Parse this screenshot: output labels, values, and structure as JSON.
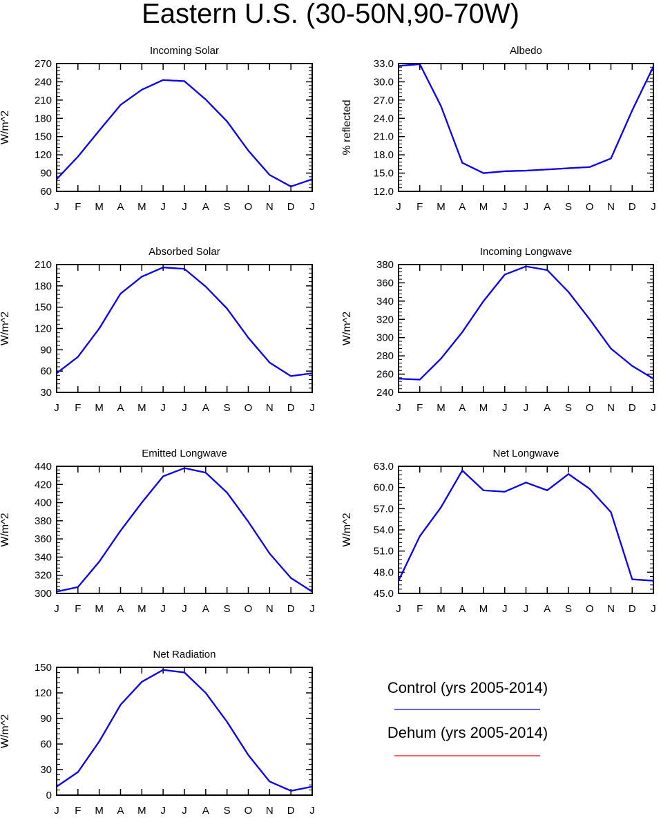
{
  "title": "Eastern U.S. (30-50N,90-70W)",
  "legend": {
    "entries": [
      {
        "label": "Control (yrs 2005-2014)",
        "color": "#0000ff"
      },
      {
        "label": "Dehum (yrs 2005-2014)",
        "color": "#ff0000"
      }
    ]
  },
  "chart_data": [
    {
      "type": "line",
      "title": "Incoming Solar",
      "ylabel": "W/m^2",
      "categories": [
        "J",
        "F",
        "M",
        "A",
        "M",
        "J",
        "J",
        "A",
        "S",
        "O",
        "N",
        "D",
        "J"
      ],
      "ylim": [
        60,
        270
      ],
      "yticks": [
        60,
        90,
        120,
        150,
        180,
        210,
        240,
        270
      ],
      "ytick_labels": [
        "60",
        "90",
        "120",
        "150",
        "180",
        "210",
        "240",
        "270"
      ],
      "series": [
        {
          "name": "Control (yrs 2005-2014)",
          "color": "#0000ff",
          "values": [
            80,
            117,
            160,
            202,
            227,
            243,
            241,
            211,
            175,
            127,
            87,
            68,
            80
          ]
        },
        {
          "name": "Dehum (yrs 2005-2014)",
          "color": "#ff0000",
          "values": [
            80,
            117,
            160,
            202,
            227,
            243,
            241,
            211,
            175,
            127,
            87,
            68,
            80
          ]
        }
      ]
    },
    {
      "type": "line",
      "title": "Albedo",
      "ylabel": "% reflected",
      "categories": [
        "J",
        "F",
        "M",
        "A",
        "M",
        "J",
        "J",
        "A",
        "S",
        "O",
        "N",
        "D",
        "J"
      ],
      "ylim": [
        12.0,
        33.0
      ],
      "yticks": [
        12,
        15,
        18,
        21,
        24,
        27,
        30,
        33
      ],
      "ytick_labels": [
        "12.0",
        "15.0",
        "18.0",
        "21.0",
        "24.0",
        "27.0",
        "30.0",
        "33.0"
      ],
      "series": [
        {
          "name": "Control (yrs 2005-2014)",
          "color": "#0000ff",
          "values": [
            32.6,
            32.9,
            26.0,
            16.7,
            15.0,
            15.3,
            15.4,
            15.6,
            15.8,
            16.0,
            17.4,
            25.3,
            32.5
          ]
        },
        {
          "name": "Dehum (yrs 2005-2014)",
          "color": "#ff0000",
          "values": [
            32.6,
            32.9,
            26.0,
            16.7,
            15.0,
            15.3,
            15.4,
            15.6,
            15.8,
            16.0,
            17.4,
            25.3,
            32.5
          ]
        }
      ]
    },
    {
      "type": "line",
      "title": "Absorbed Solar",
      "ylabel": "W/m^2",
      "categories": [
        "J",
        "F",
        "M",
        "A",
        "M",
        "J",
        "J",
        "A",
        "S",
        "O",
        "N",
        "D",
        "J"
      ],
      "ylim": [
        30,
        210
      ],
      "yticks": [
        30,
        60,
        90,
        120,
        150,
        180,
        210
      ],
      "ytick_labels": [
        "30",
        "60",
        "90",
        "120",
        "150",
        "180",
        "210"
      ],
      "series": [
        {
          "name": "Control (yrs 2005-2014)",
          "color": "#0000ff",
          "values": [
            57,
            80,
            120,
            169,
            193,
            206,
            204,
            179,
            148,
            107,
            72,
            53,
            57
          ]
        },
        {
          "name": "Dehum (yrs 2005-2014)",
          "color": "#ff0000",
          "values": [
            57,
            80,
            120,
            169,
            193,
            206,
            204,
            179,
            148,
            107,
            72,
            53,
            57
          ]
        }
      ]
    },
    {
      "type": "line",
      "title": "Incoming Longwave",
      "ylabel": "W/m^2",
      "categories": [
        "J",
        "F",
        "M",
        "A",
        "M",
        "J",
        "J",
        "A",
        "S",
        "O",
        "N",
        "D",
        "J"
      ],
      "ylim": [
        240,
        380
      ],
      "yticks": [
        240,
        260,
        280,
        300,
        320,
        340,
        360,
        380
      ],
      "ytick_labels": [
        "240",
        "260",
        "280",
        "300",
        "320",
        "340",
        "360",
        "380"
      ],
      "series": [
        {
          "name": "Control (yrs 2005-2014)",
          "color": "#0000ff",
          "values": [
            255,
            254,
            277,
            306,
            340,
            369,
            378,
            374,
            350,
            320,
            288,
            269,
            255
          ]
        },
        {
          "name": "Dehum (yrs 2005-2014)",
          "color": "#ff0000",
          "values": [
            255,
            254,
            277,
            306,
            340,
            369,
            378,
            374,
            350,
            320,
            288,
            269,
            255
          ]
        }
      ]
    },
    {
      "type": "line",
      "title": "Emitted Longwave",
      "ylabel": "W/m^2",
      "categories": [
        "J",
        "F",
        "M",
        "A",
        "M",
        "J",
        "J",
        "A",
        "S",
        "O",
        "N",
        "D",
        "J"
      ],
      "ylim": [
        300,
        440
      ],
      "yticks": [
        300,
        320,
        340,
        360,
        380,
        400,
        420,
        440
      ],
      "ytick_labels": [
        "300",
        "320",
        "340",
        "360",
        "380",
        "400",
        "420",
        "440"
      ],
      "series": [
        {
          "name": "Control (yrs 2005-2014)",
          "color": "#0000ff",
          "values": [
            302,
            307,
            335,
            369,
            400,
            429,
            438,
            433,
            411,
            379,
            344,
            317,
            302
          ]
        },
        {
          "name": "Dehum (yrs 2005-2014)",
          "color": "#ff0000",
          "values": [
            302,
            307,
            335,
            369,
            400,
            429,
            438,
            433,
            411,
            379,
            344,
            317,
            302
          ]
        }
      ]
    },
    {
      "type": "line",
      "title": "Net Longwave",
      "ylabel": "W/m^2",
      "categories": [
        "J",
        "F",
        "M",
        "A",
        "M",
        "J",
        "J",
        "A",
        "S",
        "O",
        "N",
        "D",
        "J"
      ],
      "ylim": [
        45.0,
        63.0
      ],
      "yticks": [
        45,
        48,
        51,
        54,
        57,
        60,
        63
      ],
      "ytick_labels": [
        "45.0",
        "48.0",
        "51.0",
        "54.0",
        "57.0",
        "60.0",
        "63.0"
      ],
      "series": [
        {
          "name": "Control (yrs 2005-2014)",
          "color": "#0000ff",
          "values": [
            46.8,
            53.1,
            57.2,
            62.4,
            59.6,
            59.4,
            60.7,
            59.6,
            61.9,
            59.8,
            56.5,
            47.0,
            46.8
          ]
        },
        {
          "name": "Dehum (yrs 2005-2014)",
          "color": "#ff0000",
          "values": [
            46.8,
            53.1,
            57.2,
            62.4,
            59.6,
            59.4,
            60.7,
            59.6,
            61.9,
            59.8,
            56.5,
            47.0,
            46.8
          ]
        }
      ]
    },
    {
      "type": "line",
      "title": "Net Radiation",
      "ylabel": "W/m^2",
      "categories": [
        "J",
        "F",
        "M",
        "A",
        "M",
        "J",
        "J",
        "A",
        "S",
        "O",
        "N",
        "D",
        "J"
      ],
      "ylim": [
        0,
        150
      ],
      "yticks": [
        0,
        30,
        60,
        90,
        120,
        150
      ],
      "ytick_labels": [
        "0",
        "30",
        "60",
        "90",
        "120",
        "150"
      ],
      "series": [
        {
          "name": "Control (yrs 2005-2014)",
          "color": "#0000ff",
          "values": [
            10,
            27,
            63,
            106,
            133,
            147,
            144,
            120,
            86,
            47,
            16,
            5,
            10
          ]
        },
        {
          "name": "Dehum (yrs 2005-2014)",
          "color": "#ff0000",
          "values": [
            10,
            27,
            63,
            106,
            133,
            147,
            144,
            120,
            86,
            47,
            16,
            5,
            10
          ]
        }
      ]
    }
  ]
}
